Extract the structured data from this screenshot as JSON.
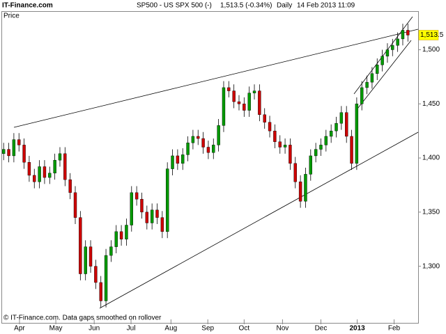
{
  "header": {
    "brand": "IT-Finance.com",
    "symbol": "SP500 - US SPX 500 (-)",
    "quote": "1,513.5 (-0.34%)",
    "period": "Daily",
    "timestamp": "14 Feb 2013 11:09"
  },
  "footer": "© IT-Finance.com. Data gaps smoothed on rollover",
  "chart_data": {
    "type": "candlestick",
    "y_label": "Price",
    "up_color": "#009900",
    "down_color": "#cc0000",
    "open": [
      1404,
      1408,
      1402,
      1417,
      1412,
      1396,
      1384,
      1378,
      1392,
      1382,
      1386,
      1398,
      1404,
      1380,
      1368,
      1345,
      1293,
      1318,
      1300,
      1285,
      1268,
      1310,
      1318,
      1332,
      1325,
      1338,
      1368,
      1362,
      1350,
      1340,
      1352,
      1345,
      1332,
      1390,
      1402,
      1395,
      1403,
      1414,
      1420,
      1418,
      1410,
      1405,
      1412,
      1430,
      1465,
      1462,
      1452,
      1450,
      1444,
      1460,
      1462,
      1440,
      1433,
      1425,
      1415,
      1410,
      1412,
      1395,
      1378,
      1360,
      1385,
      1402,
      1408,
      1412,
      1420,
      1425,
      1432,
      1442,
      1420,
      1395,
      1450,
      1465,
      1470,
      1478,
      1486,
      1494,
      1500,
      1504,
      1510,
      1518
    ],
    "high": [
      1414,
      1414,
      1423,
      1423,
      1418,
      1402,
      1390,
      1398,
      1398,
      1392,
      1404,
      1410,
      1410,
      1386,
      1374,
      1351,
      1324,
      1324,
      1306,
      1291,
      1316,
      1324,
      1338,
      1338,
      1344,
      1374,
      1374,
      1368,
      1356,
      1358,
      1358,
      1351,
      1396,
      1408,
      1408,
      1409,
      1420,
      1426,
      1426,
      1424,
      1416,
      1418,
      1436,
      1471,
      1471,
      1468,
      1458,
      1456,
      1466,
      1468,
      1468,
      1446,
      1439,
      1431,
      1421,
      1418,
      1418,
      1401,
      1384,
      1391,
      1408,
      1414,
      1418,
      1426,
      1431,
      1438,
      1448,
      1448,
      1426,
      1456,
      1471,
      1476,
      1484,
      1492,
      1500,
      1506,
      1510,
      1516,
      1524,
      1524
    ],
    "low": [
      1398,
      1396,
      1396,
      1406,
      1390,
      1378,
      1372,
      1372,
      1376,
      1376,
      1380,
      1392,
      1374,
      1362,
      1339,
      1287,
      1287,
      1294,
      1279,
      1262,
      1262,
      1304,
      1312,
      1319,
      1319,
      1332,
      1356,
      1344,
      1334,
      1334,
      1339,
      1326,
      1326,
      1384,
      1389,
      1389,
      1397,
      1408,
      1412,
      1404,
      1399,
      1399,
      1406,
      1424,
      1456,
      1446,
      1444,
      1438,
      1438,
      1454,
      1434,
      1427,
      1419,
      1409,
      1404,
      1404,
      1389,
      1372,
      1354,
      1354,
      1379,
      1396,
      1402,
      1406,
      1414,
      1419,
      1426,
      1414,
      1389,
      1389,
      1444,
      1459,
      1464,
      1472,
      1480,
      1488,
      1494,
      1498,
      1504,
      1507.5
    ],
    "close": [
      1408,
      1402,
      1417,
      1412,
      1396,
      1384,
      1378,
      1392,
      1382,
      1386,
      1398,
      1404,
      1380,
      1368,
      1345,
      1293,
      1318,
      1300,
      1285,
      1268,
      1310,
      1318,
      1332,
      1325,
      1338,
      1368,
      1362,
      1350,
      1340,
      1352,
      1345,
      1332,
      1390,
      1402,
      1395,
      1403,
      1414,
      1420,
      1418,
      1410,
      1405,
      1412,
      1430,
      1465,
      1462,
      1452,
      1450,
      1444,
      1460,
      1462,
      1440,
      1433,
      1425,
      1415,
      1410,
      1412,
      1395,
      1378,
      1360,
      1385,
      1402,
      1408,
      1412,
      1420,
      1425,
      1432,
      1442,
      1420,
      1395,
      1450,
      1465,
      1470,
      1478,
      1486,
      1494,
      1500,
      1504,
      1510,
      1518,
      1513.5
    ],
    "last_price": {
      "value": 1513.5,
      "label": "1,513.5"
    },
    "xlim": [
      -0.3,
      81
    ],
    "xticks": [
      {
        "value": 3.1,
        "label": "Apr"
      },
      {
        "value": 10.2,
        "label": "May"
      },
      {
        "value": 17.7,
        "label": "Jun"
      },
      {
        "value": 24.9,
        "label": "Jul"
      },
      {
        "value": 32.7,
        "label": "Aug"
      },
      {
        "value": 39.9,
        "label": "Sep"
      },
      {
        "value": 47,
        "label": "Oct"
      },
      {
        "value": 54.5,
        "label": "Nov"
      },
      {
        "value": 62,
        "label": "Dec"
      },
      {
        "value": 69.1,
        "label": "2013"
      },
      {
        "value": 76.3,
        "label": "Feb"
      }
    ],
    "ylim": [
      1249,
      1535
    ],
    "yticks": [
      {
        "value": 1300,
        "label": "1,300"
      },
      {
        "value": 1350,
        "label": "1,350"
      },
      {
        "value": 1400,
        "label": "1,400"
      },
      {
        "value": 1450,
        "label": "1,450"
      },
      {
        "value": 1500,
        "label": "1,500"
      }
    ]
  }
}
